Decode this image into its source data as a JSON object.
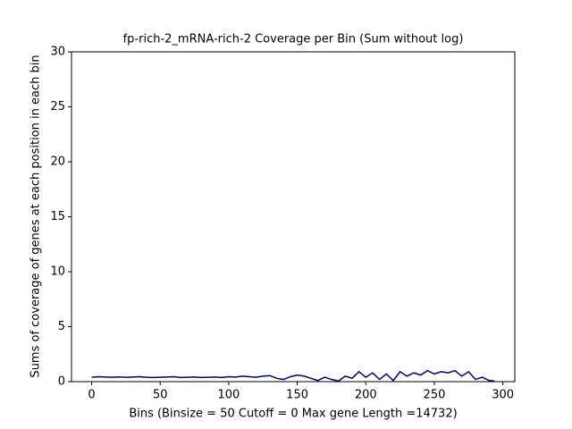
{
  "chart_data": {
    "type": "line",
    "title": "fp-rich-2_mRNA-rich-2 Coverage per Bin (Sum without log)",
    "x_label": "Bins  (Binsize = 50 Cutoff = 0 Max gene Length =14732)",
    "y_label": "Sums of coverage of genes at each position in each bin",
    "x": [
      0,
      5,
      10,
      15,
      20,
      25,
      30,
      35,
      40,
      45,
      50,
      55,
      60,
      65,
      70,
      75,
      80,
      85,
      90,
      95,
      100,
      105,
      110,
      115,
      120,
      125,
      130,
      135,
      140,
      145,
      150,
      155,
      160,
      165,
      170,
      175,
      180,
      185,
      190,
      195,
      200,
      205,
      210,
      215,
      220,
      225,
      230,
      235,
      240,
      245,
      250,
      255,
      260,
      265,
      270,
      275,
      280,
      285,
      290,
      294
    ],
    "series": [
      {
        "name": "coverage",
        "color": "#000080",
        "values": [
          0.4,
          0.45,
          0.42,
          0.4,
          0.43,
          0.4,
          0.42,
          0.45,
          0.4,
          0.38,
          0.4,
          0.42,
          0.45,
          0.38,
          0.4,
          0.42,
          0.38,
          0.4,
          0.42,
          0.38,
          0.45,
          0.42,
          0.5,
          0.45,
          0.4,
          0.5,
          0.55,
          0.3,
          0.2,
          0.45,
          0.6,
          0.5,
          0.3,
          0.1,
          0.4,
          0.2,
          0.05,
          0.5,
          0.3,
          0.9,
          0.4,
          0.8,
          0.2,
          0.7,
          0.1,
          0.9,
          0.5,
          0.8,
          0.6,
          1.0,
          0.7,
          0.9,
          0.8,
          1.0,
          0.5,
          0.9,
          0.2,
          0.4,
          0.1,
          0.05
        ]
      }
    ],
    "xlim": [
      -14.7,
      308.7
    ],
    "ylim": [
      0,
      30
    ],
    "xticks": [
      0,
      50,
      100,
      150,
      200,
      250,
      300
    ],
    "yticks": [
      0,
      5,
      10,
      15,
      20,
      25,
      30
    ],
    "grid": false
  }
}
